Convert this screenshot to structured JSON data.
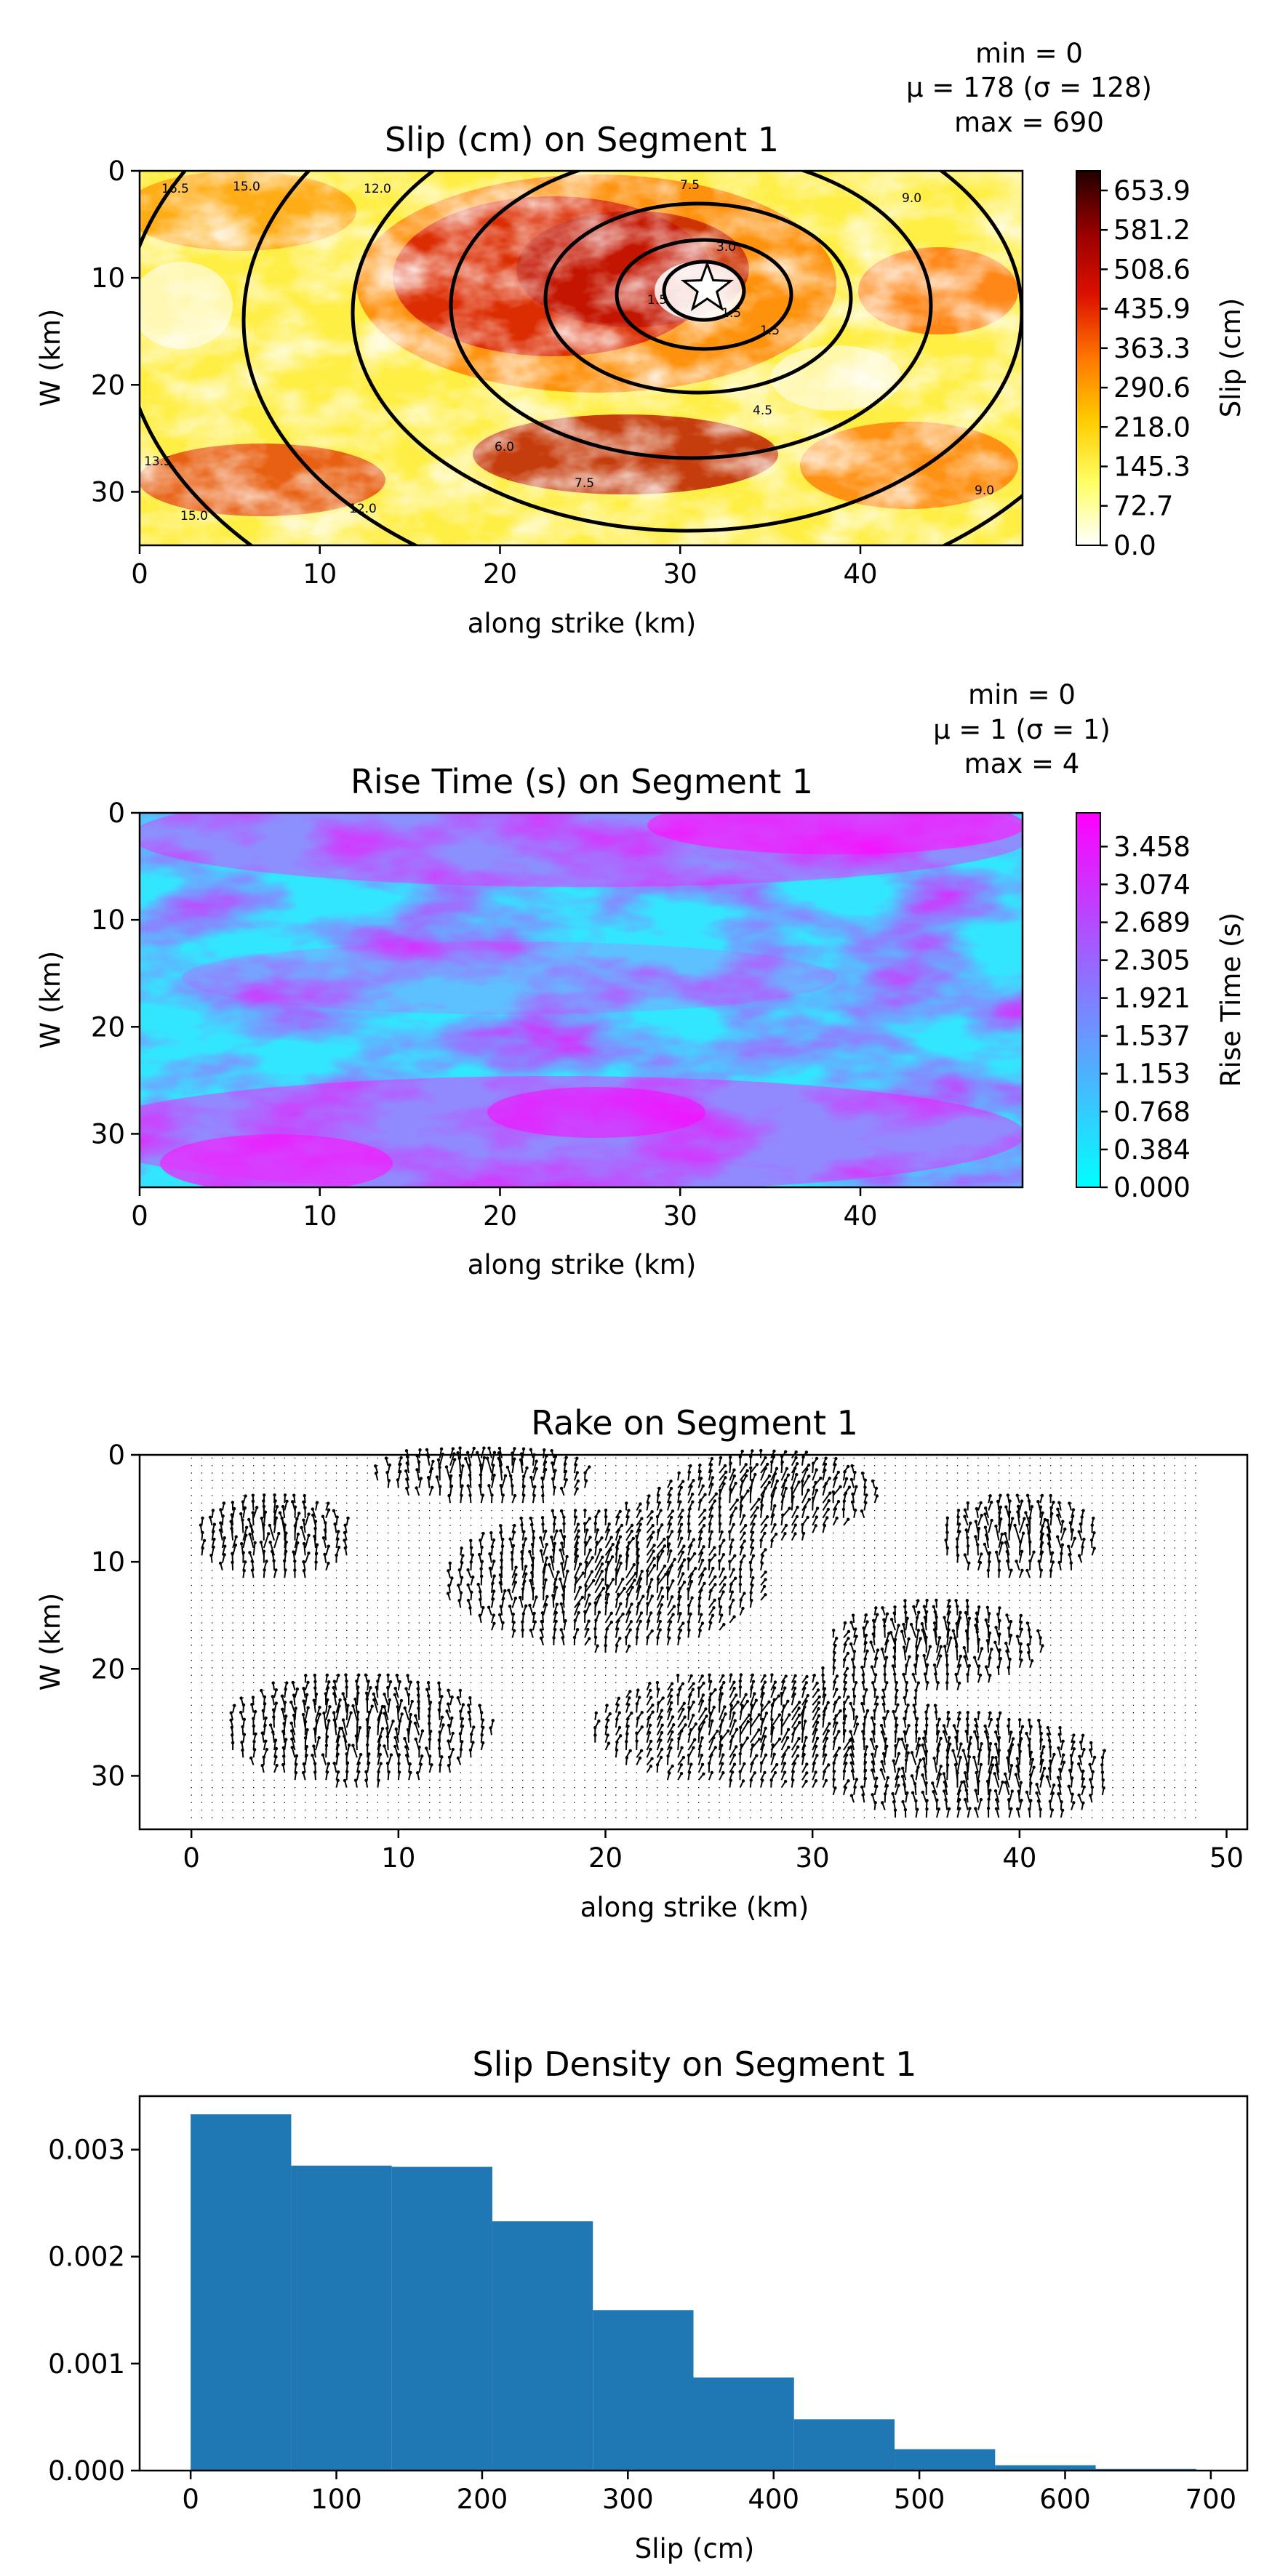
{
  "figure": {
    "panels": [
      "slip",
      "rise",
      "rake",
      "hist"
    ]
  },
  "chart_data": [
    {
      "id": "slip",
      "type": "heatmap",
      "title": "Slip (cm) on Segment 1",
      "stats": [
        "min = 0",
        "μ = 178 (σ = 128)",
        "max = 690"
      ],
      "xlabel": "along strike (km)",
      "ylabel": "W (km)",
      "xlim": [
        0,
        49
      ],
      "ylim": [
        35,
        0
      ],
      "xticks": [
        "0",
        "10",
        "20",
        "30",
        "40"
      ],
      "yticks": [
        "0",
        "10",
        "20",
        "30"
      ],
      "colorbar_label": "Slip (cm)",
      "colorbar_ticks": [
        "0.0",
        "72.7",
        "145.3",
        "218.0",
        "290.6",
        "363.3",
        "435.9",
        "508.6",
        "581.2",
        "653.9"
      ],
      "colormap": [
        "#ffffff",
        "#ffff66",
        "#ffcc00",
        "#ff7700",
        "#dd1100",
        "#990000",
        "#220000"
      ],
      "vmin": 0,
      "vmax": 690,
      "hypocenter": [
        31.5,
        11
      ],
      "contour_labels": [
        "1.5",
        "1.5",
        "1.5",
        "3.0",
        "4.5",
        "6.0",
        "7.5",
        "7.5",
        "9.0",
        "9.0",
        "12.0",
        "12.0",
        "13.5",
        "15.0",
        "15.0",
        "16.5"
      ]
    },
    {
      "id": "rise",
      "type": "heatmap",
      "title": "Rise Time (s) on Segment 1",
      "stats": [
        "min = 0",
        "μ = 1 (σ = 1)",
        "max = 4"
      ],
      "xlabel": "along strike (km)",
      "ylabel": "W (km)",
      "xlim": [
        0,
        49
      ],
      "ylim": [
        35,
        0
      ],
      "xticks": [
        "0",
        "10",
        "20",
        "30",
        "40"
      ],
      "yticks": [
        "0",
        "10",
        "20",
        "30"
      ],
      "colorbar_label": "Rise Time (s)",
      "colorbar_ticks": [
        "0.000",
        "0.384",
        "0.768",
        "1.153",
        "1.537",
        "1.921",
        "2.305",
        "2.689",
        "3.074",
        "3.458"
      ],
      "colormap": [
        "#00ffff",
        "#ff00ff"
      ],
      "vmin": 0,
      "vmax": 3.8
    },
    {
      "id": "rake",
      "type": "quiver",
      "title": "Rake on Segment 1",
      "xlabel": "along strike (km)",
      "ylabel": "W (km)",
      "xlim": [
        -2.5,
        51
      ],
      "ylim": [
        35,
        0
      ],
      "xticks": [
        "0",
        "10",
        "20",
        "30",
        "40",
        "50"
      ],
      "yticks": [
        "0",
        "10",
        "20",
        "30"
      ]
    },
    {
      "id": "hist",
      "type": "bar",
      "title": "Slip Density on Segment 1",
      "xlabel": "Slip (cm)",
      "ylabel": "",
      "xlim": [
        -35,
        725
      ],
      "ylim": [
        0,
        0.0035
      ],
      "xticks": [
        "0",
        "100",
        "200",
        "300",
        "400",
        "500",
        "600",
        "700"
      ],
      "yticks": [
        "0.000",
        "0.001",
        "0.002",
        "0.003"
      ],
      "bin_edges": [
        0,
        69,
        138,
        207,
        276,
        345,
        414,
        483,
        552,
        621,
        690
      ],
      "values": [
        0.00333,
        0.00285,
        0.00284,
        0.00233,
        0.0015,
        0.00087,
        0.00048,
        0.0002,
        5e-05,
        1.5e-05
      ],
      "color": "#1f77b4"
    }
  ]
}
